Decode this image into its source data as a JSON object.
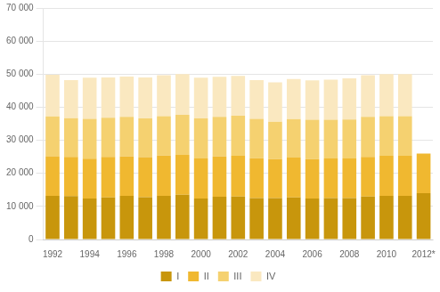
{
  "chart_data": {
    "type": "bar",
    "stacked": true,
    "categories": [
      "1992",
      null,
      "1994",
      null,
      "1996",
      null,
      "1998",
      null,
      "2000",
      null,
      "2002",
      null,
      "2004",
      null,
      "2006",
      null,
      "2008",
      null,
      "2010",
      null,
      "2012*"
    ],
    "series": [
      {
        "name": "I",
        "color": "#C8960C",
        "values": [
          13200,
          13100,
          12400,
          12700,
          13200,
          12800,
          13200,
          13500,
          12400,
          12900,
          13000,
          12500,
          12500,
          12700,
          12400,
          12500,
          12500,
          13000,
          13200,
          13200,
          14000
        ]
      },
      {
        "name": "II",
        "color": "#F0B830",
        "values": [
          12000,
          11900,
          12000,
          12300,
          11900,
          12100,
          12200,
          12100,
          12100,
          12200,
          12300,
          12100,
          11800,
          12100,
          11900,
          12000,
          12000,
          12000,
          12100,
          12100,
          12000
        ]
      },
      {
        "name": "III",
        "color": "#F5D170",
        "values": [
          12000,
          11700,
          12100,
          11800,
          12000,
          11700,
          11900,
          12100,
          12100,
          12000,
          12100,
          11900,
          11300,
          11600,
          11900,
          11700,
          11800,
          12100,
          12000,
          12000,
          0
        ]
      },
      {
        "name": "IV",
        "color": "#FAE8C0",
        "values": [
          12600,
          11500,
          12400,
          12200,
          12200,
          12400,
          12400,
          12300,
          12300,
          12100,
          12100,
          11700,
          11900,
          12100,
          11900,
          12100,
          12400,
          12600,
          12700,
          12700,
          0
        ]
      }
    ],
    "ylim": [
      0,
      70000
    ],
    "yticks": [
      0,
      {
        "value": 10000,
        "label": "10 000"
      },
      {
        "value": 20000,
        "label": "20 000"
      },
      {
        "value": 30000,
        "label": "30 000"
      },
      {
        "value": 40000,
        "label": "40 000"
      },
      {
        "value": 50000,
        "label": "50 000"
      },
      {
        "value": 60000,
        "label": "60 000"
      },
      {
        "value": 70000,
        "label": "70 000"
      }
    ],
    "grid": true,
    "legend": "bottom"
  }
}
